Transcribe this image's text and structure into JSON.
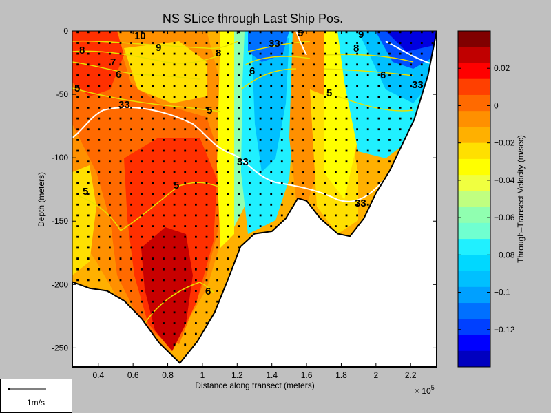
{
  "chart_data": {
    "type": "heatmap",
    "title": "NS SLice through Last Ship Pos.",
    "xlabel": "Distance along transect (meters)",
    "ylabel": "Depth (meters)",
    "x_multiplier_label": "× 10",
    "x_multiplier_exponent": "5",
    "xlim": [
      0.25,
      2.35
    ],
    "ylim": [
      -265,
      0
    ],
    "x_ticks": [
      0.4,
      0.6,
      0.8,
      1.0,
      1.2,
      1.4,
      1.6,
      1.8,
      2.0,
      2.2
    ],
    "x_tick_labels": [
      "0.4",
      "0.6",
      "0.8",
      "1",
      "1.2",
      "1.4",
      "1.6",
      "1.8",
      "2",
      "2.2"
    ],
    "y_ticks": [
      0,
      -50,
      -100,
      -150,
      -200,
      -250
    ],
    "y_tick_labels": [
      "0",
      "-50",
      "-100",
      "-150",
      "-200",
      "-250"
    ],
    "colorbar": {
      "label": "Through–Transect Velocity (m/sec)",
      "range": [
        -0.14,
        0.04
      ],
      "ticks": [
        0.02,
        0,
        -0.02,
        -0.04,
        -0.06,
        -0.08,
        -0.1,
        -0.12
      ],
      "tick_labels": [
        "0.02",
        "0",
        "−0.02",
        "−0.04",
        "−0.06",
        "−0.08",
        "−0.1",
        "−0.12"
      ],
      "colors": [
        "#800000",
        "#c00000",
        "#ff0000",
        "#ff4000",
        "#ff6a00",
        "#ff9000",
        "#ffb000",
        "#ffe000",
        "#ffff00",
        "#f0ff40",
        "#c0ff80",
        "#90ffb0",
        "#70ffd0",
        "#20f0ff",
        "#00d8ff",
        "#00c0ff",
        "#00a0ff",
        "#0070ff",
        "#0040ff",
        "#0000ff",
        "#0000c0"
      ]
    },
    "bottom_profile": [
      {
        "x": 0.25,
        "depth": -198
      },
      {
        "x": 0.35,
        "depth": -203
      },
      {
        "x": 0.45,
        "depth": -205
      },
      {
        "x": 0.55,
        "depth": -213
      },
      {
        "x": 0.65,
        "depth": -227
      },
      {
        "x": 0.75,
        "depth": -246
      },
      {
        "x": 0.87,
        "depth": -262
      },
      {
        "x": 0.97,
        "depth": -245
      },
      {
        "x": 1.07,
        "depth": -222
      },
      {
        "x": 1.15,
        "depth": -195
      },
      {
        "x": 1.22,
        "depth": -170
      },
      {
        "x": 1.3,
        "depth": -160
      },
      {
        "x": 1.4,
        "depth": -158
      },
      {
        "x": 1.48,
        "depth": -148
      },
      {
        "x": 1.55,
        "depth": -132
      },
      {
        "x": 1.6,
        "depth": -134
      },
      {
        "x": 1.68,
        "depth": -148
      },
      {
        "x": 1.78,
        "depth": -160
      },
      {
        "x": 1.85,
        "depth": -162
      },
      {
        "x": 1.93,
        "depth": -148
      },
      {
        "x": 2.0,
        "depth": -128
      },
      {
        "x": 2.08,
        "depth": -110
      },
      {
        "x": 2.15,
        "depth": -90
      },
      {
        "x": 2.22,
        "depth": -70
      },
      {
        "x": 2.3,
        "depth": -35
      },
      {
        "x": 2.35,
        "depth": 0
      }
    ],
    "contour_labels": [
      "5",
      "5",
      "5",
      "5",
      "5",
      "5",
      "6",
      "6",
      "6",
      "6",
      "7",
      "8",
      "8",
      "8",
      "9",
      "9",
      "10",
      "33",
      "33",
      "33",
      "33",
      "33"
    ]
  },
  "velocity_scale": {
    "label": "1m/s"
  }
}
